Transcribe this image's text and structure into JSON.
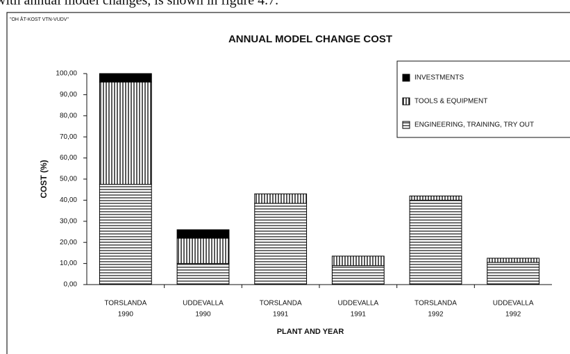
{
  "page_text": "with annual model changes, is shown in figure 4.7.",
  "chart_data": {
    "type": "stacked-bar",
    "corner_note": "\"OH ÅT-KOST VTN-VUDV\"",
    "title": "ANNUAL MODEL CHANGE COST",
    "y_label": "COST (%)",
    "x_label": "PLANT AND YEAR",
    "categories": [
      [
        "TORSLANDA",
        "1990"
      ],
      [
        "UDDEVALLA",
        "1990"
      ],
      [
        "TORSLANDA",
        "1991"
      ],
      [
        "UDDEVALLA",
        "1991"
      ],
      [
        "TORSLANDA",
        "1992"
      ],
      [
        "UDDEVALLA",
        "1992"
      ]
    ],
    "series": [
      {
        "name": "ENGINEERING, TRAINING, TRY OUT",
        "color": "#000000",
        "pattern": "horizontal",
        "values": [
          47.5,
          10,
          38.5,
          9,
          40,
          10.5
        ]
      },
      {
        "name": "TOOLS & EQUIPMENT",
        "color": "#000000",
        "pattern": "vertical",
        "values": [
          48.5,
          12,
          4.5,
          4.5,
          2,
          2
        ]
      },
      {
        "name": "INVESTMENTS",
        "color": "#000000",
        "pattern": "solid",
        "values": [
          4,
          4,
          0,
          0,
          0,
          0
        ]
      }
    ],
    "ylim": [
      0,
      100
    ],
    "yticks": [
      {
        "value": 0,
        "label": "0,00"
      },
      {
        "value": 10,
        "label": "10,00"
      },
      {
        "value": 20,
        "label": "20,00"
      },
      {
        "value": 30,
        "label": "30,00"
      },
      {
        "value": 40,
        "label": "40,00"
      },
      {
        "value": 50,
        "label": "50,00"
      },
      {
        "value": 60,
        "label": "60,00"
      },
      {
        "value": 70,
        "label": "70,00"
      },
      {
        "value": 80,
        "label": "80,00"
      },
      {
        "value": 90,
        "label": "90,00"
      },
      {
        "value": 100,
        "label": "100,00"
      }
    ],
    "legend": "upper right",
    "grid": false
  }
}
